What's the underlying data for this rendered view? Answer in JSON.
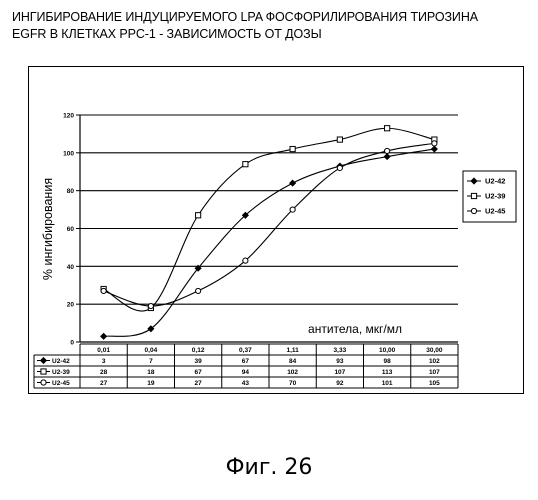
{
  "title_lines": [
    "ИНГИБИРОВАНИЕ ИНДУЦИРУЕМОГО LPA ФОСФОРИЛИРОВАНИЯ ТИРОЗИНА",
    "EGFR В КЛЕТКАХ PPC-1 - ЗАВИСИМОСТЬ ОТ ДОЗЫ"
  ],
  "caption": "Фиг. 26",
  "chart_data": {
    "type": "line",
    "title": "ИНГИБИРОВАНИЕ ИНДУЦИРУЕМОГО LPA ФОСФОРИЛИРОВАНИЯ ТИРОЗИНА EGFR В КЛЕТКАХ PPC-1 - ЗАВИСИМОСТЬ ОТ ДОЗЫ",
    "xlabel": "антитела, мкг/мл",
    "ylabel": "% ингибирования",
    "categories": [
      "0,01",
      "0,04",
      "0,12",
      "0,37",
      "1,11",
      "3,33",
      "10,00",
      "30,00"
    ],
    "ylim": [
      0,
      120
    ],
    "yticks": [
      0,
      20,
      40,
      60,
      80,
      100,
      120
    ],
    "grid": true,
    "legend_position": "right",
    "series": [
      {
        "name": "U2-42",
        "marker": "diamond",
        "values": [
          3,
          7,
          39,
          67,
          84,
          93,
          98,
          102
        ],
        "labels": [
          "3",
          "7",
          "39",
          "67",
          "84",
          "93",
          "98",
          "102"
        ]
      },
      {
        "name": "U2-39",
        "marker": "square",
        "values": [
          28,
          18,
          67,
          94,
          102,
          107,
          113,
          107
        ],
        "labels": [
          "28",
          "18",
          "67",
          "94",
          "102",
          "107",
          "113",
          "107"
        ]
      },
      {
        "name": "U2-45",
        "marker": "circle",
        "values": [
          27,
          19,
          27,
          43,
          70,
          92,
          101,
          105
        ],
        "labels": [
          "27",
          "19",
          "27",
          "43",
          "70",
          "92",
          "101",
          "105"
        ]
      }
    ]
  }
}
